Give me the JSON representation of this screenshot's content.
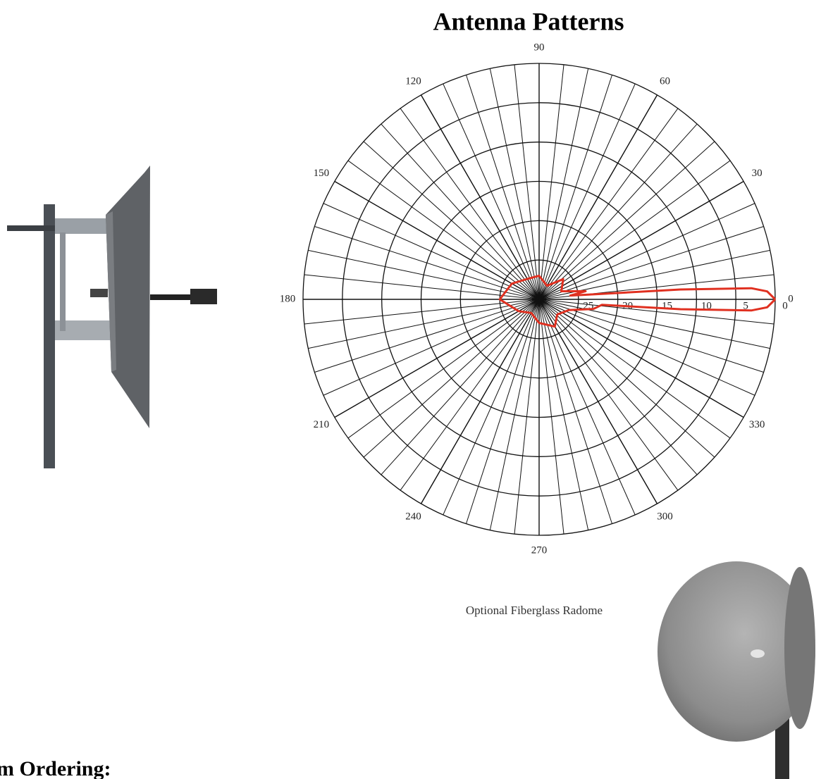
{
  "header": {
    "title": "Antenna Patterns"
  },
  "chart_data": {
    "type": "polar",
    "thetaticks": [
      0,
      30,
      60,
      90,
      120,
      150,
      180,
      210,
      240,
      270,
      300,
      330
    ],
    "rlim": [
      30,
      0
    ],
    "rticks": [
      0,
      5,
      10,
      15,
      20,
      25
    ],
    "series": [
      {
        "color": "#e03020",
        "theta": [
          0,
          2,
          3,
          4,
          5,
          7,
          10,
          20,
          40,
          60,
          90,
          120,
          150,
          180,
          210,
          240,
          270,
          300,
          320,
          340,
          350,
          355,
          356,
          357,
          358,
          360
        ],
        "values": [
          0,
          1,
          3,
          12,
          22,
          26,
          24,
          27,
          26,
          28,
          27,
          27,
          26,
          25,
          27,
          28,
          27,
          26,
          27,
          26,
          23,
          22,
          12,
          3,
          1,
          0
        ]
      }
    ]
  },
  "caption": "Optional Fiberglass Radome",
  "footer": {
    "heading": "m Ordering:"
  }
}
